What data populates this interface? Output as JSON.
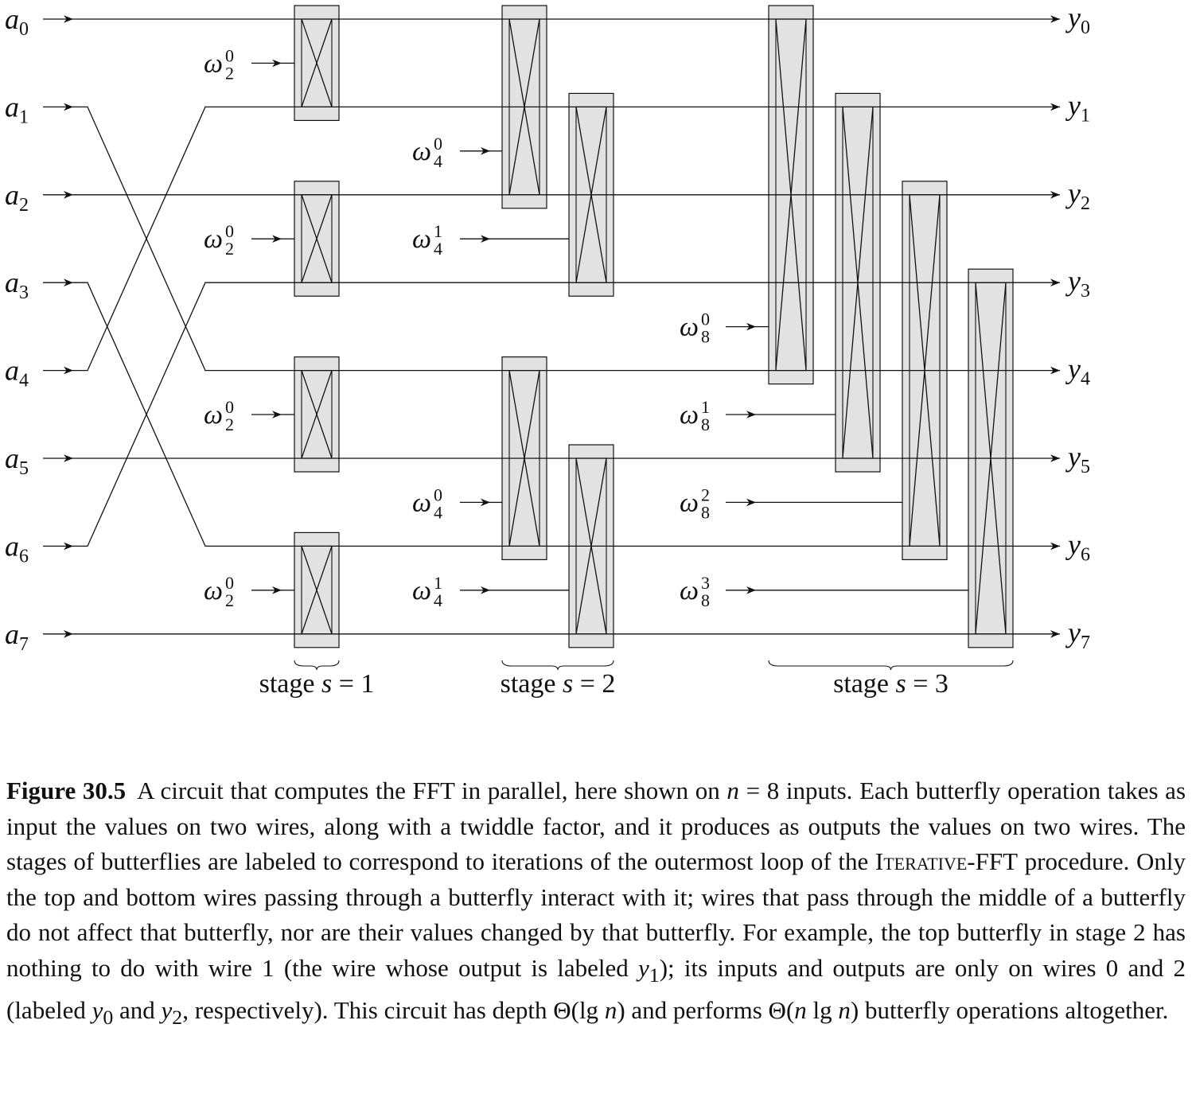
{
  "inputs": [
    "a",
    "a",
    "a",
    "a",
    "a",
    "a",
    "a",
    "a"
  ],
  "input_indices": [
    "0",
    "1",
    "2",
    "3",
    "4",
    "5",
    "6",
    "7"
  ],
  "outputs": [
    "y",
    "y",
    "y",
    "y",
    "y",
    "y",
    "y",
    "y"
  ],
  "output_indices": [
    "0",
    "1",
    "2",
    "3",
    "4",
    "5",
    "6",
    "7"
  ],
  "input_order": [
    0,
    4,
    2,
    6,
    1,
    5,
    3,
    7
  ],
  "twiddle_symbol": "ω",
  "stages": [
    {
      "label": "stage",
      "var": "s",
      "eq": "= 1",
      "butterflies": [
        {
          "top": 0,
          "bottom": 1,
          "twiddle_sub": "2",
          "twiddle_sup": "0"
        },
        {
          "top": 2,
          "bottom": 3,
          "twiddle_sub": "2",
          "twiddle_sup": "0"
        },
        {
          "top": 4,
          "bottom": 5,
          "twiddle_sub": "2",
          "twiddle_sup": "0"
        },
        {
          "top": 6,
          "bottom": 7,
          "twiddle_sub": "2",
          "twiddle_sup": "0"
        }
      ]
    },
    {
      "label": "stage",
      "var": "s",
      "eq": "= 2",
      "butterflies": [
        {
          "top": 0,
          "bottom": 2,
          "twiddle_sub": "4",
          "twiddle_sup": "0"
        },
        {
          "top": 1,
          "bottom": 3,
          "twiddle_sub": "4",
          "twiddle_sup": "1"
        },
        {
          "top": 4,
          "bottom": 6,
          "twiddle_sub": "4",
          "twiddle_sup": "0"
        },
        {
          "top": 5,
          "bottom": 7,
          "twiddle_sub": "4",
          "twiddle_sup": "1"
        }
      ]
    },
    {
      "label": "stage",
      "var": "s",
      "eq": "= 3",
      "butterflies": [
        {
          "top": 0,
          "bottom": 4,
          "twiddle_sub": "8",
          "twiddle_sup": "0"
        },
        {
          "top": 1,
          "bottom": 5,
          "twiddle_sub": "8",
          "twiddle_sup": "1"
        },
        {
          "top": 2,
          "bottom": 6,
          "twiddle_sub": "8",
          "twiddle_sup": "2"
        },
        {
          "top": 3,
          "bottom": 7,
          "twiddle_sub": "8",
          "twiddle_sup": "3"
        }
      ]
    }
  ],
  "colors": {
    "box_fill": "#e2e2e2",
    "line": "#111111"
  },
  "caption": {
    "figure": "Figure 30.5",
    "p1": "A circuit that computes the FFT in parallel, here shown on ",
    "n1": "n",
    "p2": " = 8 inputs. Each butterfly operation takes as input the values on two wires, along with a twiddle factor, and it produces as outputs the values on two wires. The stages of butterflies are labeled to correspond to iterations of the outermost loop of the ",
    "proc": "Iterative-FFT",
    "p3": " procedure. Only the top and bottom wires passing through a butterfly interact with it; wires that pass through the middle of a butterfly do not affect that butterfly, nor are their values changed by that butterfly. For example, the top butterfly in stage 2 has nothing to do with wire 1 (the wire whose output is labeled ",
    "y1": "y",
    "y1_sub": "1",
    "p4": "); its inputs and outputs are only on wires 0 and 2 (labeled ",
    "y0": "y",
    "y0_sub": "0",
    "p5": " and ",
    "y2": "y",
    "y2_sub": "2",
    "p6": ", respectively). This circuit has depth Θ(lg ",
    "n2": "n",
    "p7": ") and performs Θ(",
    "n3": "n",
    "p8": " lg ",
    "n4": "n",
    "p9": ") butterfly operations altogether."
  }
}
